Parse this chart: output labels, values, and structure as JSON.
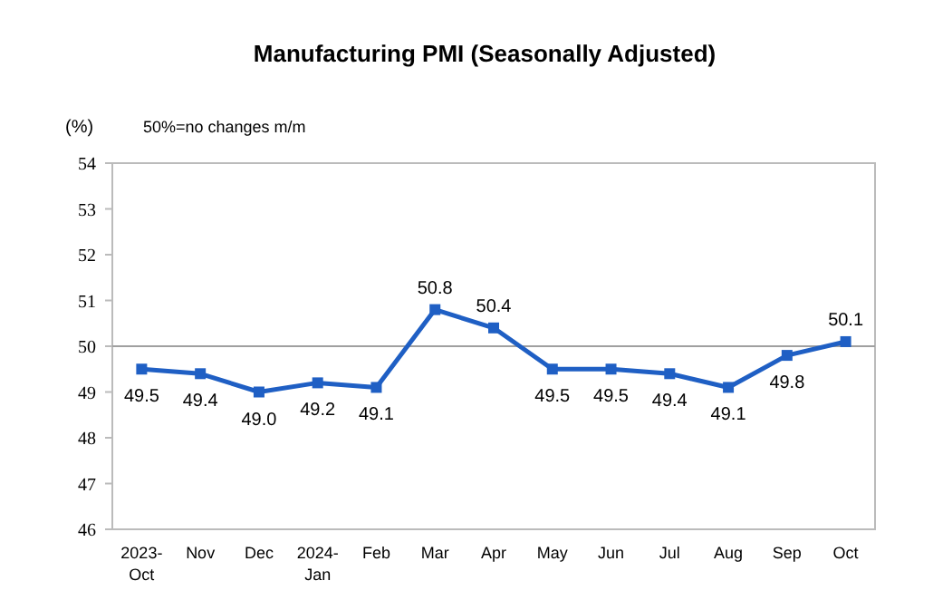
{
  "chart_data": {
    "type": "line",
    "title": "Manufacturing PMI (Seasonally Adjusted)",
    "ylabel": "(%)",
    "annotations": [
      "50%=no changes m/m"
    ],
    "categories": [
      "2023-\nOct",
      "Nov",
      "Dec",
      "2024-\nJan",
      "Feb",
      "Mar",
      "Apr",
      "May",
      "Jun",
      "Jul",
      "Aug",
      "Sep",
      "Oct"
    ],
    "series": [
      {
        "color": "#1f5fc4",
        "values": [
          49.5,
          49.4,
          49.0,
          49.2,
          49.1,
          50.8,
          50.4,
          49.5,
          49.5,
          49.4,
          49.1,
          49.8,
          50.1
        ],
        "value_labels": [
          "49.5",
          "49.4",
          "49.0",
          "49.2",
          "49.1",
          "50.8",
          "50.4",
          "49.5",
          "49.5",
          "49.4",
          "49.1",
          "49.8",
          "50.1"
        ]
      }
    ],
    "ylim": [
      46,
      54
    ],
    "yticks": [
      46,
      47,
      48,
      49,
      50,
      51,
      52,
      53,
      54
    ],
    "ref_lines": [
      {
        "axis": "y",
        "value": 50,
        "color": "#a0a0a0"
      }
    ],
    "grid": false,
    "marker": "square",
    "line_style": "solid"
  }
}
